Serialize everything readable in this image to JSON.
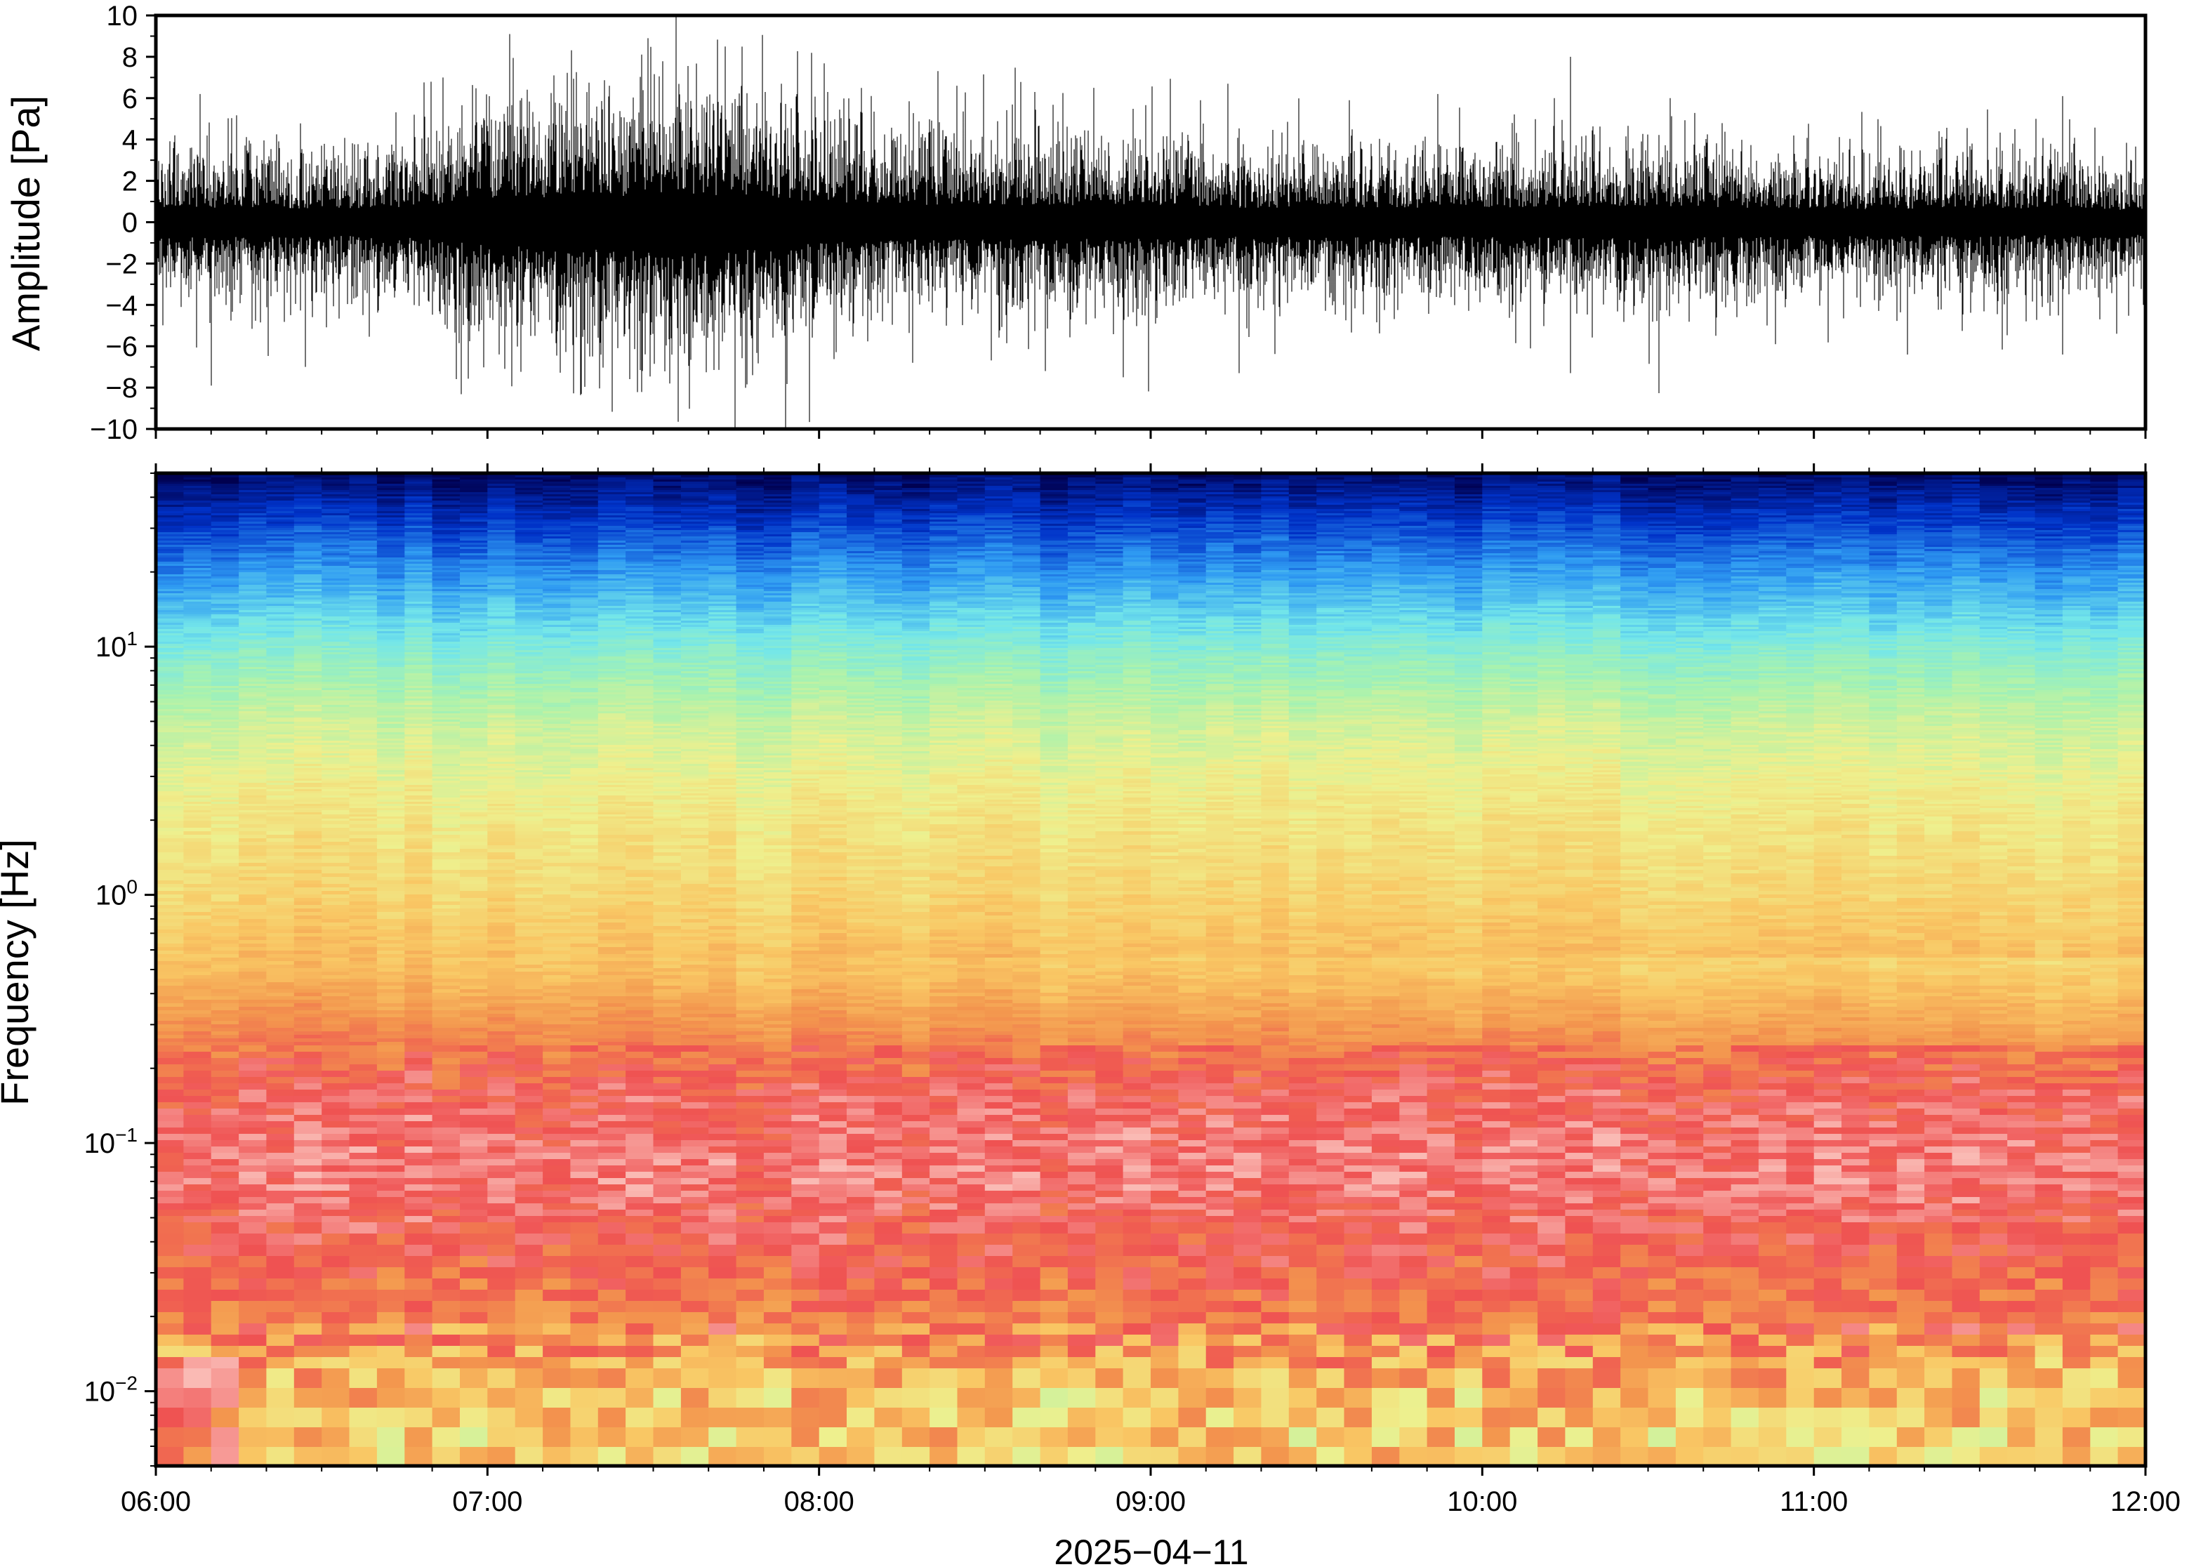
{
  "chart_data": [
    {
      "type": "line",
      "panel": "waveform",
      "ylabel": "Amplitude [Pa]",
      "ylim": [
        -10,
        10
      ],
      "yticks": [
        -10,
        -8,
        -6,
        -4,
        -2,
        0,
        2,
        4,
        6,
        8,
        10
      ],
      "ytick_labels": [
        "−10",
        "−8",
        "−6",
        "−4",
        "−2",
        "0",
        "2",
        "4",
        "6",
        "8",
        "10"
      ],
      "xlim": [
        "2025-04-11T06:00",
        "2025-04-11T12:00"
      ],
      "color": "#000000",
      "grid": false,
      "envelope": {
        "t": [
          "06:00",
          "06:15",
          "06:30",
          "06:45",
          "07:00",
          "07:15",
          "07:30",
          "07:45",
          "08:00",
          "08:15",
          "08:30",
          "08:45",
          "09:00",
          "09:15",
          "09:30",
          "09:45",
          "10:00",
          "10:15",
          "10:30",
          "10:45",
          "11:00",
          "11:15",
          "11:30",
          "11:45",
          "12:00"
        ],
        "typical_abs": [
          2.0,
          2.0,
          1.8,
          2.0,
          3.2,
          3.5,
          3.7,
          3.7,
          2.8,
          2.4,
          2.4,
          2.3,
          2.3,
          2.0,
          2.0,
          2.0,
          2.0,
          2.1,
          2.2,
          2.0,
          1.8,
          1.8,
          2.0,
          1.7,
          1.7
        ]
      },
      "peaks": [
        {
          "t": "06:08",
          "value": 6.2
        },
        {
          "t": "06:10",
          "value": -7.9
        },
        {
          "t": "06:27",
          "value": -7.0
        },
        {
          "t": "06:52",
          "value": 7.0
        },
        {
          "t": "07:04",
          "value": 9.1
        },
        {
          "t": "07:12",
          "value": 7.1
        },
        {
          "t": "07:22",
          "value": 6.6
        },
        {
          "t": "07:29",
          "value": 8.9
        },
        {
          "t": "07:33",
          "value": -7.8
        },
        {
          "t": "07:43",
          "value": 8.5
        },
        {
          "t": "07:48",
          "value": -7.4
        },
        {
          "t": "07:54",
          "value": -10.0
        },
        {
          "t": "08:17",
          "value": -6.8
        },
        {
          "t": "08:25",
          "value": 6.6
        },
        {
          "t": "08:39",
          "value": 6.3
        },
        {
          "t": "08:41",
          "value": -7.2
        },
        {
          "t": "08:55",
          "value": -7.5
        },
        {
          "t": "09:09",
          "value": 5.9
        },
        {
          "t": "09:14",
          "value": 6.7
        },
        {
          "t": "09:16",
          "value": -7.3
        },
        {
          "t": "09:36",
          "value": 5.9
        },
        {
          "t": "09:52",
          "value": 6.2
        },
        {
          "t": "10:13",
          "value": 6.0
        },
        {
          "t": "10:16",
          "value": 8.0
        },
        {
          "t": "10:16",
          "value": -7.3
        },
        {
          "t": "10:34",
          "value": 6.0
        },
        {
          "t": "10:53",
          "value": -5.9
        },
        {
          "t": "11:17",
          "value": -6.4
        },
        {
          "t": "11:45",
          "value": 6.1
        },
        {
          "t": "11:45",
          "value": -6.4
        }
      ]
    },
    {
      "type": "heatmap",
      "panel": "spectrogram",
      "ylabel": "Frequency [Hz]",
      "yscale": "log",
      "ylim": [
        0.005,
        50
      ],
      "ytick_base": "10",
      "ytick_exponents": [
        "−2",
        "−1",
        "0",
        "1"
      ],
      "xlim": [
        "2025-04-11T06:00",
        "2025-04-11T12:00"
      ],
      "xlabel": "2025−04−11",
      "xtick_labels": [
        "06:00",
        "07:00",
        "08:00",
        "09:00",
        "10:00",
        "11:00",
        "12:00"
      ],
      "colormap": [
        "#00004f",
        "#0032c8",
        "#2f9bf2",
        "#73e6ea",
        "#a9f2ae",
        "#eef08e",
        "#f9c764",
        "#f3964e",
        "#ef5252",
        "#fabab4"
      ],
      "bands": [
        {
          "from_hz": 30,
          "to_hz": 50,
          "color": "deep blue"
        },
        {
          "from_hz": 12,
          "to_hz": 30,
          "color": "blue"
        },
        {
          "from_hz": 5,
          "to_hz": 12,
          "color": "cyan to green"
        },
        {
          "from_hz": 1,
          "to_hz": 5,
          "color": "yellow"
        },
        {
          "from_hz": 0.4,
          "to_hz": 1,
          "color": "orange"
        },
        {
          "from_hz": 0.15,
          "to_hz": 0.4,
          "color": "red"
        },
        {
          "from_hz": 0.05,
          "to_hz": 0.15,
          "color": "pink"
        },
        {
          "from_hz": 0.02,
          "to_hz": 0.05,
          "color": "red"
        },
        {
          "from_hz": 0.005,
          "to_hz": 0.02,
          "color": "orange to pale green"
        }
      ]
    }
  ]
}
